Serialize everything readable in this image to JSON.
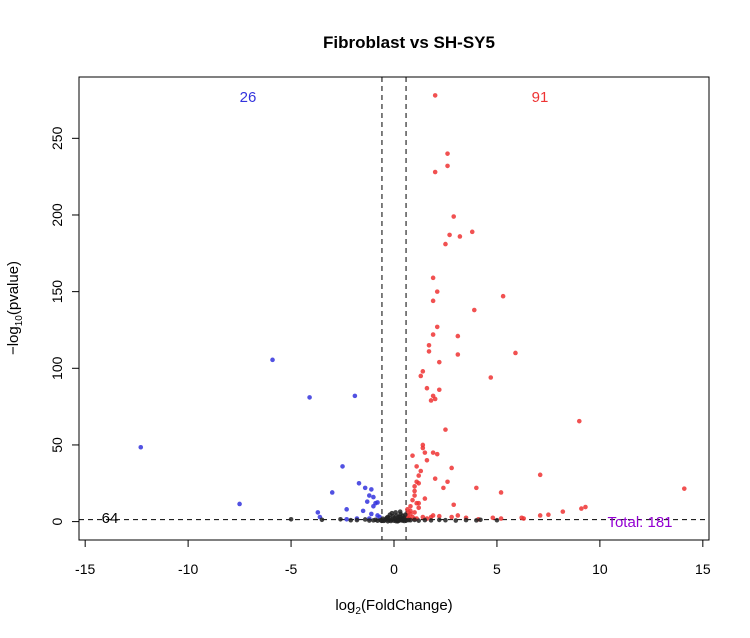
{
  "chart_data": {
    "type": "scatter",
    "title": "Fibroblast vs SH-SY5",
    "xlabel_base": "log",
    "xlabel_sub": "2",
    "xlabel_rest": "(FoldChange)",
    "ylabel_prefix": "−log",
    "ylabel_sub": "10",
    "ylabel_rest": "(pvalue)",
    "xlim": [
      -15.3,
      15.3
    ],
    "ylim": [
      -12,
      290
    ],
    "xticks": [
      -15,
      -10,
      -5,
      0,
      5,
      10,
      15
    ],
    "yticks": [
      0,
      50,
      100,
      150,
      200,
      250
    ],
    "vlines": [
      -0.585,
      0.585
    ],
    "hline": 1.3,
    "annotations": {
      "down_count": "26",
      "up_count": "91",
      "ns_count": "64",
      "total": "Total: 181"
    },
    "colors": {
      "down": "#3333dd",
      "up": "#ee3333",
      "ns": "#222222",
      "total": "#9400d3"
    },
    "series": [
      {
        "group": "down",
        "points": [
          [
            -12.3,
            48.5
          ],
          [
            -7.5,
            11.5
          ],
          [
            -5.9,
            105.5
          ],
          [
            -4.1,
            81
          ],
          [
            -1.9,
            82
          ],
          [
            -2.5,
            36
          ],
          [
            -3.0,
            19
          ],
          [
            -3.7,
            6
          ],
          [
            -3.6,
            3
          ],
          [
            -1.7,
            25
          ],
          [
            -1.4,
            22
          ],
          [
            -1.1,
            21
          ],
          [
            -1.2,
            17
          ],
          [
            -1.0,
            16
          ],
          [
            -1.3,
            13
          ],
          [
            -0.9,
            12
          ],
          [
            -1.0,
            10
          ],
          [
            -0.8,
            12.5
          ],
          [
            -2.3,
            8
          ],
          [
            -1.5,
            7
          ],
          [
            -1.1,
            5
          ],
          [
            -0.8,
            4
          ],
          [
            -0.7,
            3
          ],
          [
            -1.8,
            2
          ],
          [
            -2.3,
            1.5
          ],
          [
            -1.2,
            2
          ]
        ]
      },
      {
        "group": "up",
        "points": [
          [
            2.0,
            278
          ],
          [
            2.6,
            240
          ],
          [
            2.6,
            232
          ],
          [
            2.0,
            228
          ],
          [
            2.9,
            199
          ],
          [
            3.8,
            189
          ],
          [
            2.7,
            187
          ],
          [
            3.2,
            186
          ],
          [
            2.5,
            181
          ],
          [
            1.9,
            159
          ],
          [
            2.1,
            150
          ],
          [
            1.9,
            144
          ],
          [
            5.3,
            147
          ],
          [
            3.9,
            138
          ],
          [
            2.1,
            127
          ],
          [
            1.9,
            122
          ],
          [
            3.1,
            121
          ],
          [
            1.7,
            115
          ],
          [
            1.7,
            111
          ],
          [
            3.1,
            109
          ],
          [
            5.9,
            110
          ],
          [
            2.2,
            104
          ],
          [
            1.4,
            98
          ],
          [
            1.3,
            95
          ],
          [
            4.7,
            94
          ],
          [
            1.6,
            87
          ],
          [
            2.2,
            86
          ],
          [
            1.9,
            82
          ],
          [
            2.0,
            80
          ],
          [
            1.8,
            79
          ],
          [
            2.5,
            60
          ],
          [
            1.4,
            50
          ],
          [
            1.4,
            48
          ],
          [
            1.5,
            45
          ],
          [
            1.9,
            45
          ],
          [
            2.1,
            44
          ],
          [
            0.9,
            43
          ],
          [
            2.8,
            35
          ],
          [
            1.3,
            33
          ],
          [
            1.2,
            30
          ],
          [
            1.1,
            26
          ],
          [
            2.6,
            26
          ],
          [
            1.2,
            25
          ],
          [
            1.0,
            23
          ],
          [
            4.0,
            22
          ],
          [
            2.4,
            22
          ],
          [
            1.0,
            20
          ],
          [
            5.2,
            19
          ],
          [
            1.0,
            17
          ],
          [
            0.9,
            14
          ],
          [
            1.1,
            12
          ],
          [
            0.8,
            10
          ],
          [
            1.2,
            9
          ],
          [
            0.8,
            7
          ],
          [
            0.7,
            6
          ],
          [
            1.0,
            6
          ],
          [
            0.8,
            5
          ],
          [
            1.9,
            4
          ],
          [
            3.1,
            4
          ],
          [
            1.8,
            3
          ],
          [
            1.4,
            3
          ],
          [
            0.9,
            3
          ],
          [
            0.7,
            2.5
          ],
          [
            1.1,
            2
          ],
          [
            4.8,
            2.5
          ],
          [
            6.3,
            2
          ],
          [
            7.1,
            30.5
          ],
          [
            9.0,
            65.5
          ],
          [
            14.1,
            21.5
          ],
          [
            9.3,
            9.5
          ],
          [
            9.1,
            8.5
          ],
          [
            8.2,
            6.5
          ],
          [
            7.5,
            4.5
          ],
          [
            7.1,
            4
          ],
          [
            2.8,
            3
          ],
          [
            3.5,
            2.5
          ],
          [
            4.1,
            1.5
          ],
          [
            5.2,
            2
          ],
          [
            6.2,
            2.5
          ],
          [
            1.6,
            2
          ],
          [
            2.2,
            3.5
          ],
          [
            0.75,
            1.8
          ],
          [
            1.0,
            1.8
          ],
          [
            0.65,
            4
          ],
          [
            0.65,
            8
          ],
          [
            1.2,
            12
          ],
          [
            1.5,
            15
          ],
          [
            2.0,
            28
          ],
          [
            1.1,
            36
          ],
          [
            1.6,
            40
          ],
          [
            2.9,
            11
          ]
        ]
      },
      {
        "group": "ns",
        "points": [
          [
            -5.0,
            1.5
          ],
          [
            -3.5,
            1.2
          ],
          [
            -2.6,
            1.5
          ],
          [
            -1.8,
            1.0
          ],
          [
            -1.4,
            1.4
          ],
          [
            -1.0,
            0.8
          ],
          [
            -0.9,
            1.2
          ],
          [
            -0.5,
            0.5
          ],
          [
            -0.4,
            1.5
          ],
          [
            -0.35,
            2.5
          ],
          [
            -0.3,
            3.0
          ],
          [
            -0.25,
            1.0
          ],
          [
            -0.2,
            2.0
          ],
          [
            -0.15,
            0.4
          ],
          [
            -0.1,
            1.2
          ],
          [
            -0.05,
            3.5
          ],
          [
            0.0,
            0.6
          ],
          [
            0.02,
            2.2
          ],
          [
            0.05,
            1.5
          ],
          [
            0.1,
            0.3
          ],
          [
            0.12,
            4.0
          ],
          [
            0.15,
            1.0
          ],
          [
            0.2,
            2.8
          ],
          [
            0.22,
            0.5
          ],
          [
            0.25,
            1.8
          ],
          [
            0.28,
            3.2
          ],
          [
            0.3,
            0.9
          ],
          [
            0.32,
            5.0
          ],
          [
            0.35,
            1.4
          ],
          [
            0.38,
            2.0
          ],
          [
            0.4,
            0.7
          ],
          [
            0.42,
            3.8
          ],
          [
            0.45,
            1.1
          ],
          [
            0.48,
            2.5
          ],
          [
            0.5,
            0.4
          ],
          [
            0.52,
            1.6
          ],
          [
            0.55,
            4.5
          ],
          [
            -0.45,
            0.8
          ],
          [
            -0.55,
            1.9
          ],
          [
            -0.6,
            0.5
          ],
          [
            -0.2,
            4.5
          ],
          [
            -0.1,
            5.5
          ],
          [
            0.08,
            6.0
          ],
          [
            0.3,
            6.5
          ],
          [
            1.5,
            1.0
          ],
          [
            1.8,
            0.8
          ],
          [
            2.2,
            1.1
          ],
          [
            2.5,
            0.9
          ],
          [
            3.0,
            0.7
          ],
          [
            3.5,
            1.0
          ],
          [
            4.0,
            0.8
          ],
          [
            4.2,
            1.2
          ],
          [
            5.0,
            0.9
          ],
          [
            1.2,
            0.6
          ],
          [
            1.0,
            1.1
          ],
          [
            0.8,
            0.9
          ],
          [
            -0.8,
            0.6
          ],
          [
            -1.2,
            0.7
          ],
          [
            -2.1,
            0.9
          ],
          [
            -0.65,
            0.9
          ],
          [
            0.6,
            0.8
          ],
          [
            0.7,
            1.0
          ],
          [
            -0.3,
            0.2
          ],
          [
            0.18,
            0.2
          ]
        ]
      }
    ]
  }
}
